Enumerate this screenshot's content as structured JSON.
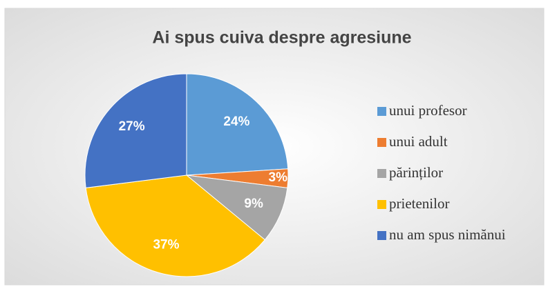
{
  "chart_data": {
    "type": "pie",
    "title": "Ai spus cuiva despre agresiune",
    "categories": [
      "unui profesor",
      "unui adult",
      "părinților",
      "prietenilor",
      "nu am spus nimănui"
    ],
    "values": [
      24,
      3,
      9,
      37,
      27
    ],
    "value_labels": [
      "24%",
      "3%",
      "9%",
      "37%",
      "27%"
    ],
    "colors": [
      "#5b9bd5",
      "#ed7d31",
      "#a5a5a5",
      "#ffc000",
      "#4472c4"
    ],
    "legend": "right"
  }
}
